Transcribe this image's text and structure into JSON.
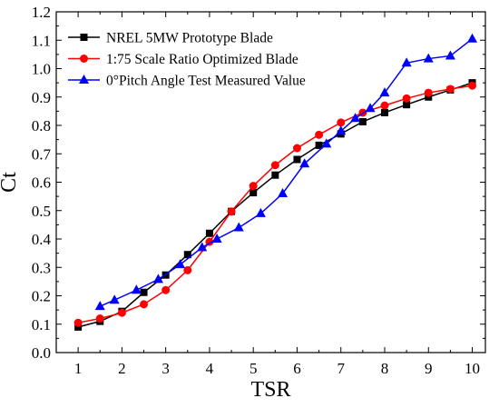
{
  "chart_data": {
    "type": "line",
    "title": "",
    "xlabel": "TSR",
    "ylabel": "Ct",
    "xlim": [
      0.5,
      10.3
    ],
    "ylim": [
      0.0,
      1.2
    ],
    "xticks": [
      "1",
      "2",
      "3",
      "4",
      "5",
      "6",
      "7",
      "8",
      "9",
      "10"
    ],
    "yticks": [
      "0.0",
      "0.1",
      "0.2",
      "0.3",
      "0.4",
      "0.5",
      "0.6",
      "0.7",
      "0.8",
      "0.9",
      "1.0",
      "1.1",
      "1.2"
    ],
    "grid": false,
    "legend_position": "top-left",
    "series": [
      {
        "name": "NREL 5MW Prototype Blade",
        "color": "#000000",
        "marker": "square",
        "x": [
          1,
          1.5,
          2,
          2.5,
          3,
          3.5,
          4,
          4.5,
          5,
          5.5,
          6,
          6.5,
          7,
          7.5,
          8,
          8.5,
          9,
          9.5,
          10
        ],
        "y": [
          0.09,
          0.11,
          0.145,
          0.212,
          0.273,
          0.345,
          0.42,
          0.497,
          0.563,
          0.625,
          0.68,
          0.73,
          0.77,
          0.813,
          0.845,
          0.873,
          0.9,
          0.925,
          0.95
        ]
      },
      {
        "name": "1:75 Scale Ratio Optimized Blade",
        "color": "#ff0000",
        "marker": "circle",
        "x": [
          1,
          1.5,
          2,
          2.5,
          3,
          3.5,
          4,
          4.5,
          5,
          5.5,
          6,
          6.5,
          7,
          7.5,
          8,
          8.5,
          9,
          9.5,
          10
        ],
        "y": [
          0.105,
          0.12,
          0.14,
          0.17,
          0.22,
          0.29,
          0.39,
          0.497,
          0.587,
          0.66,
          0.72,
          0.767,
          0.81,
          0.845,
          0.87,
          0.895,
          0.915,
          0.928,
          0.94
        ]
      },
      {
        "name": "0°Pitch Angle Test Measured Value",
        "color": "#0000ff",
        "marker": "triangle",
        "x": [
          1.5,
          1.83,
          2.33,
          2.83,
          3.33,
          3.83,
          4.17,
          4.67,
          5.17,
          5.67,
          6.17,
          6.67,
          7,
          7.33,
          7.67,
          8,
          8.5,
          9,
          9.5,
          10
        ],
        "y": [
          0.163,
          0.185,
          0.22,
          0.258,
          0.31,
          0.37,
          0.4,
          0.44,
          0.49,
          0.56,
          0.665,
          0.735,
          0.78,
          0.825,
          0.86,
          0.915,
          1.02,
          1.035,
          1.045,
          1.105
        ]
      }
    ]
  }
}
